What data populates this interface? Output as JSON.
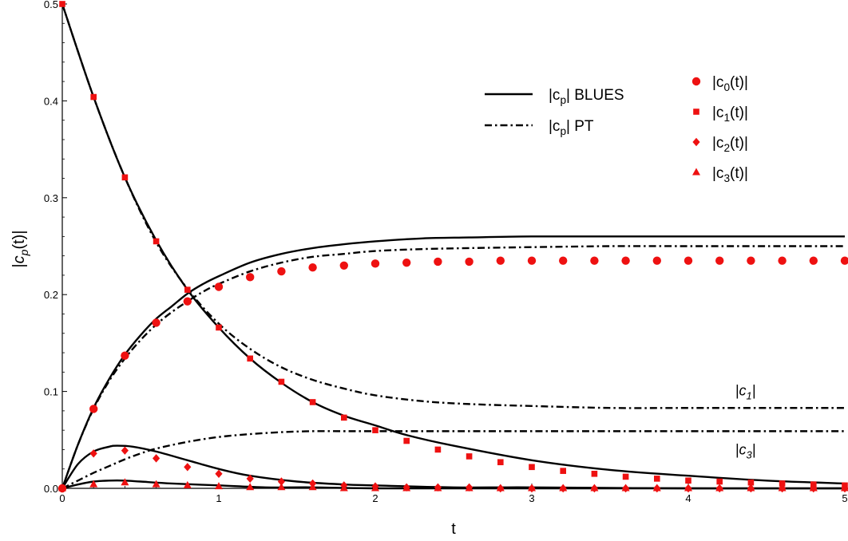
{
  "chart_data": {
    "type": "scatter",
    "xlabel": "t",
    "ylabel": "|c_p(t)|",
    "xlim": [
      0,
      5
    ],
    "ylim": [
      0,
      0.5
    ],
    "xticks": [
      0,
      1,
      2,
      3,
      4,
      5
    ],
    "yticks": [
      0.0,
      0.1,
      0.2,
      0.3,
      0.4,
      0.5
    ],
    "xtick_labels": [
      "0",
      "1",
      "2",
      "3",
      "4",
      "5"
    ],
    "ytick_labels": [
      "0.0",
      "0.1",
      "0.2",
      "0.3",
      "0.4",
      "0.5"
    ],
    "grid": false,
    "legend_lines": [
      {
        "label_base": "|c",
        "label_sub": "p",
        "label_rest": "| BLUES",
        "style": "solid"
      },
      {
        "label_base": "|c",
        "label_sub": "p",
        "label_rest": "| PT",
        "style": "dashdot"
      }
    ],
    "legend_markers": [
      {
        "label_base": "|c",
        "label_sub": "0",
        "label_rest": "(t)|",
        "marker": "circle"
      },
      {
        "label_base": "|c",
        "label_sub": "1",
        "label_rest": "(t)|",
        "marker": "square"
      },
      {
        "label_base": "|c",
        "label_sub": "2",
        "label_rest": "(t)|",
        "marker": "diamond"
      },
      {
        "label_base": "|c",
        "label_sub": "3",
        "label_rest": "(t)|",
        "marker": "triangle"
      }
    ],
    "curve_labels": [
      {
        "base": "|c",
        "sub": "1",
        "rest": "|",
        "x": 4.3,
        "y": 0.096
      },
      {
        "base": "|c",
        "sub": "3",
        "rest": "|",
        "x": 4.3,
        "y": 0.035
      }
    ],
    "marker_color": "#ee1111",
    "line_color": "#000000",
    "points_x": [
      0,
      0.2,
      0.4,
      0.6,
      0.8,
      1.0,
      1.2,
      1.4,
      1.6,
      1.8,
      2.0,
      2.2,
      2.4,
      2.6,
      2.8,
      3.0,
      3.2,
      3.4,
      3.6,
      3.8,
      4.0,
      4.2,
      4.4,
      4.6,
      4.8,
      5.0
    ],
    "marker_series": [
      {
        "name": "|c0(t)|",
        "marker": "circle",
        "values": [
          0,
          0.082,
          0.137,
          0.171,
          0.193,
          0.208,
          0.218,
          0.224,
          0.228,
          0.23,
          0.232,
          0.233,
          0.234,
          0.234,
          0.235,
          0.235,
          0.235,
          0.235,
          0.235,
          0.235,
          0.235,
          0.235,
          0.235,
          0.235,
          0.235,
          0.235
        ]
      },
      {
        "name": "|c1(t)|",
        "marker": "square",
        "values": [
          0.5,
          0.404,
          0.321,
          0.255,
          0.205,
          0.166,
          0.134,
          0.11,
          0.089,
          0.073,
          0.06,
          0.049,
          0.04,
          0.033,
          0.027,
          0.022,
          0.018,
          0.015,
          0.012,
          0.01,
          0.008,
          0.007,
          0.006,
          0.005,
          0.004,
          0.003
        ]
      },
      {
        "name": "|c2(t)|",
        "marker": "diamond",
        "values": [
          0,
          0.036,
          0.039,
          0.031,
          0.022,
          0.015,
          0.01,
          0.007,
          0.005,
          0.003,
          0.002,
          0.001,
          0.001,
          0.001,
          0,
          0,
          0,
          0,
          0,
          0,
          0,
          0,
          0,
          0,
          0,
          0
        ]
      },
      {
        "name": "|c3(t)|",
        "marker": "triangle",
        "values": [
          0,
          0.004,
          0.006,
          0.004,
          0.003,
          0.002,
          0.001,
          0.001,
          0.001,
          0,
          0,
          0,
          0,
          0,
          0,
          0,
          0,
          0,
          0,
          0,
          0,
          0,
          0,
          0,
          0,
          0
        ]
      }
    ],
    "line_series": [
      {
        "style": "solid",
        "x": [
          0,
          0.1,
          0.2,
          0.3,
          0.4,
          0.5,
          0.6,
          0.7,
          0.8,
          0.9,
          1.0,
          1.2,
          1.4,
          1.6,
          1.8,
          2.0,
          2.3,
          2.6,
          3.0,
          3.5,
          4.0,
          4.5,
          5.0
        ],
        "y": [
          0,
          0.045,
          0.083,
          0.113,
          0.138,
          0.158,
          0.175,
          0.188,
          0.201,
          0.211,
          0.219,
          0.233,
          0.242,
          0.248,
          0.252,
          0.255,
          0.258,
          0.259,
          0.26,
          0.26,
          0.26,
          0.26,
          0.26
        ]
      },
      {
        "style": "dashdot",
        "x": [
          0,
          0.1,
          0.2,
          0.3,
          0.4,
          0.5,
          0.6,
          0.7,
          0.8,
          0.9,
          1.0,
          1.2,
          1.4,
          1.6,
          1.8,
          2.0,
          2.3,
          2.6,
          3.0,
          3.5,
          4.0,
          4.5,
          5.0
        ],
        "y": [
          0,
          0.045,
          0.082,
          0.111,
          0.134,
          0.153,
          0.169,
          0.182,
          0.193,
          0.203,
          0.211,
          0.224,
          0.233,
          0.239,
          0.242,
          0.245,
          0.247,
          0.248,
          0.249,
          0.25,
          0.25,
          0.25,
          0.25
        ]
      },
      {
        "style": "solid",
        "x": [
          0,
          0.2,
          0.4,
          0.6,
          0.8,
          1.0,
          1.2,
          1.4,
          1.6,
          1.8,
          2.0,
          2.2,
          2.5,
          3.0,
          3.5,
          4.0,
          4.5,
          5.0
        ],
        "y": [
          0.5,
          0.404,
          0.321,
          0.256,
          0.205,
          0.166,
          0.134,
          0.109,
          0.089,
          0.075,
          0.065,
          0.055,
          0.044,
          0.029,
          0.019,
          0.013,
          0.008,
          0.005
        ]
      },
      {
        "style": "dashdot",
        "x": [
          0,
          0.2,
          0.4,
          0.6,
          0.8,
          1.0,
          1.2,
          1.4,
          1.6,
          1.8,
          2.0,
          2.3,
          2.6,
          3.0,
          3.5,
          4.0,
          4.5,
          5.0
        ],
        "y": [
          0.5,
          0.404,
          0.321,
          0.254,
          0.206,
          0.17,
          0.144,
          0.125,
          0.112,
          0.103,
          0.096,
          0.09,
          0.087,
          0.085,
          0.083,
          0.083,
          0.083,
          0.083
        ]
      },
      {
        "style": "dashdot",
        "x": [
          0,
          0.1,
          0.2,
          0.3,
          0.4,
          0.5,
          0.6,
          0.8,
          1.0,
          1.2,
          1.4,
          1.6,
          1.8,
          2.0,
          2.5,
          3.0,
          4.0,
          5.0
        ],
        "y": [
          0,
          0.008,
          0.016,
          0.023,
          0.03,
          0.036,
          0.041,
          0.048,
          0.053,
          0.056,
          0.058,
          0.059,
          0.059,
          0.059,
          0.059,
          0.059,
          0.059,
          0.059
        ]
      },
      {
        "style": "solid",
        "x": [
          0,
          0.1,
          0.2,
          0.3,
          0.35,
          0.45,
          0.6,
          0.8,
          1.0,
          1.2,
          1.5,
          1.8,
          2.0,
          2.5,
          3.0,
          4.0,
          5.0
        ],
        "y": [
          0,
          0.025,
          0.038,
          0.043,
          0.044,
          0.043,
          0.038,
          0.029,
          0.02,
          0.013,
          0.007,
          0.004,
          0.003,
          0.001,
          0.001,
          0,
          0
        ]
      },
      {
        "style": "solid",
        "x": [
          0,
          0.1,
          0.2,
          0.3,
          0.4,
          0.5,
          0.7,
          1.0,
          1.3,
          1.6,
          2.0,
          3.0,
          5.0
        ],
        "y": [
          0,
          0.004,
          0.007,
          0.008,
          0.008,
          0.007,
          0.005,
          0.003,
          0.001,
          0.001,
          0,
          0,
          0
        ]
      }
    ]
  }
}
